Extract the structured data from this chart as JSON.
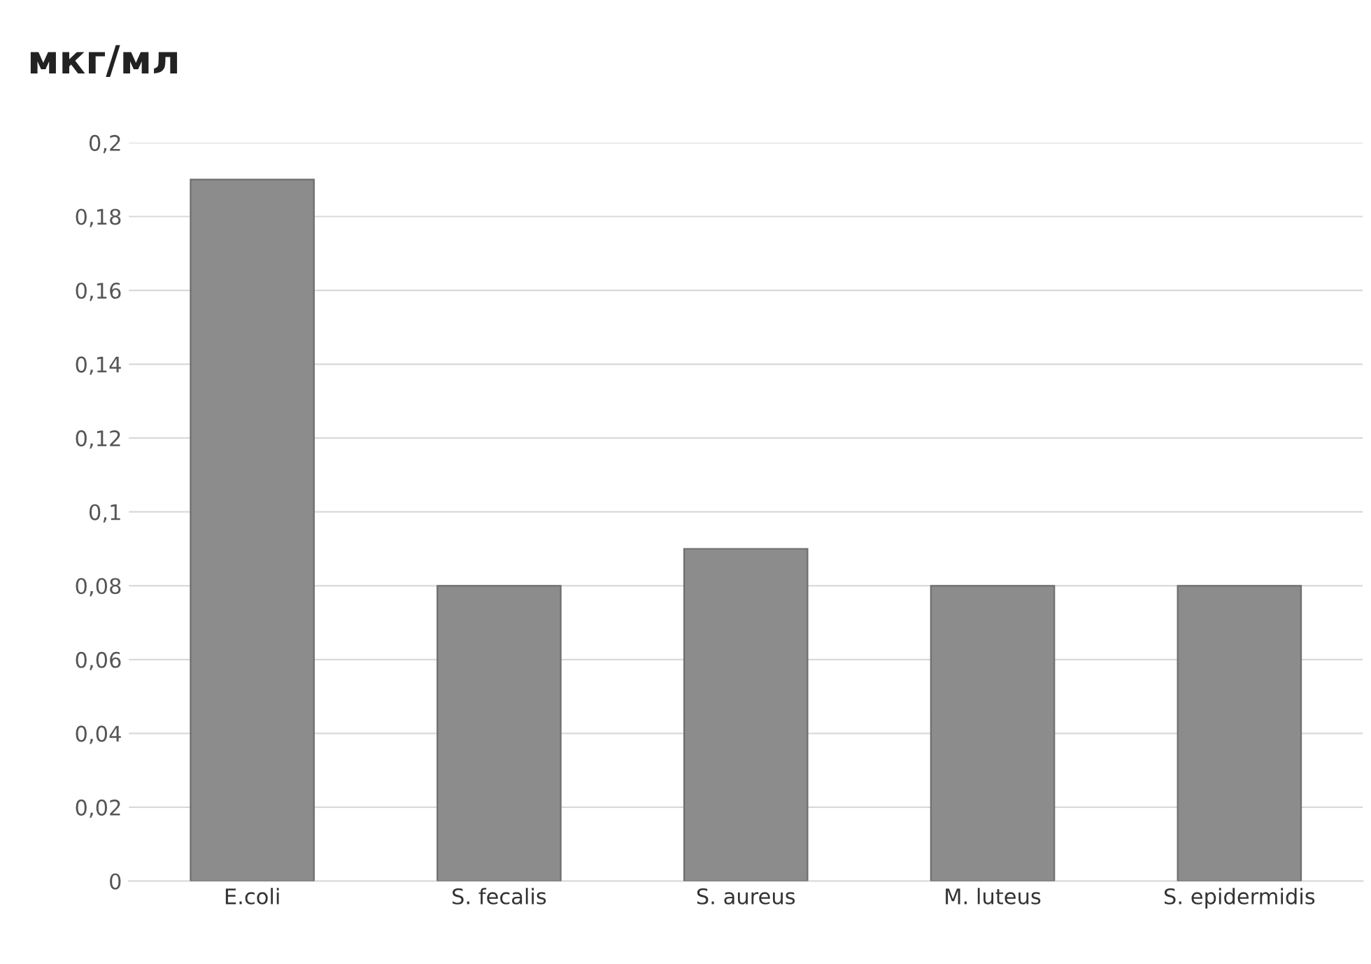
{
  "chart_data": {
    "type": "bar",
    "ylabel": "мкг/мл",
    "categories": [
      "E.coli",
      "S. fecalis",
      "S. aureus",
      "M. luteus",
      "S. epidermidis"
    ],
    "values": [
      0.19,
      0.08,
      0.09,
      0.08,
      0.08
    ],
    "color": "#8c8c8c",
    "ylim": [
      0,
      0.2
    ],
    "yticks": [
      0,
      {
        "value": 0.02,
        "label": "0,02"
      },
      {
        "value": 0.04,
        "label": "0,04"
      },
      {
        "value": 0.06,
        "label": "0,06"
      },
      {
        "value": 0.08,
        "label": "0,08"
      },
      {
        "value": 0.1,
        "label": "0,1"
      },
      {
        "value": 0.12,
        "label": "0,12"
      },
      {
        "value": 0.14,
        "label": "0,14"
      },
      {
        "value": 0.16,
        "label": "0,16"
      },
      {
        "value": 0.18,
        "label": "0,18"
      },
      {
        "value": 0.2,
        "label": "0,2"
      }
    ],
    "grid": "y"
  }
}
